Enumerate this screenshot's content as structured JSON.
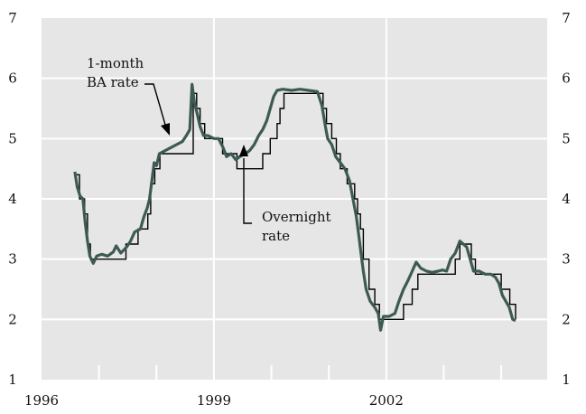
{
  "colors": {
    "plot_background": "#e6e6e6",
    "grid": "#ffffff",
    "ba_rate": "#3d5a54",
    "overnight_rate": "#000000"
  },
  "chart_data": {
    "type": "line",
    "title": "",
    "xlabel": "",
    "ylabel": "",
    "xlim": [
      1996.0,
      2004.8
    ],
    "ylim": [
      1,
      7
    ],
    "x_ticks": [
      1996,
      1999,
      2002
    ],
    "x_tick_labels": [
      "1996",
      "1999",
      "2002"
    ],
    "x_minor_ticks": [
      1997,
      1998,
      2000,
      2001,
      2003,
      2004
    ],
    "y_ticks": [
      1,
      2,
      3,
      4,
      5,
      6,
      7
    ],
    "y_tick_labels_left": [
      "1",
      "2",
      "3",
      "4",
      "5",
      "6",
      "7"
    ],
    "y_tick_labels_right": [
      "1",
      "2",
      "3",
      "4",
      "5",
      "6",
      "7"
    ],
    "grid": true,
    "annotations": [
      {
        "lines": [
          "1-month",
          "BA rate"
        ],
        "target_series": "ba_rate"
      },
      {
        "lines": [
          "Overnight",
          "rate"
        ],
        "target_series": "overnight_rate"
      }
    ],
    "series": [
      {
        "id": "ba_rate",
        "style": "line",
        "points": [
          [
            1996.58,
            4.45
          ],
          [
            1996.62,
            4.2
          ],
          [
            1996.67,
            4.05
          ],
          [
            1996.72,
            4.0
          ],
          [
            1996.76,
            3.6
          ],
          [
            1996.8,
            3.3
          ],
          [
            1996.84,
            3.05
          ],
          [
            1996.9,
            2.93
          ],
          [
            1996.96,
            3.05
          ],
          [
            1997.05,
            3.08
          ],
          [
            1997.15,
            3.05
          ],
          [
            1997.25,
            3.12
          ],
          [
            1997.3,
            3.22
          ],
          [
            1997.38,
            3.1
          ],
          [
            1997.48,
            3.2
          ],
          [
            1997.55,
            3.3
          ],
          [
            1997.62,
            3.45
          ],
          [
            1997.72,
            3.5
          ],
          [
            1997.78,
            3.7
          ],
          [
            1997.84,
            3.85
          ],
          [
            1997.88,
            4.0
          ],
          [
            1997.92,
            4.3
          ],
          [
            1997.96,
            4.6
          ],
          [
            1998.0,
            4.55
          ],
          [
            1998.05,
            4.75
          ],
          [
            1998.15,
            4.8
          ],
          [
            1998.25,
            4.85
          ],
          [
            1998.35,
            4.9
          ],
          [
            1998.45,
            4.95
          ],
          [
            1998.52,
            5.05
          ],
          [
            1998.58,
            5.15
          ],
          [
            1998.62,
            5.9
          ],
          [
            1998.66,
            5.6
          ],
          [
            1998.7,
            5.45
          ],
          [
            1998.76,
            5.2
          ],
          [
            1998.82,
            5.05
          ],
          [
            1998.9,
            5.05
          ],
          [
            1999.0,
            5.0
          ],
          [
            1999.08,
            5.0
          ],
          [
            1999.16,
            4.85
          ],
          [
            1999.22,
            4.7
          ],
          [
            1999.3,
            4.75
          ],
          [
            1999.38,
            4.65
          ],
          [
            1999.45,
            4.7
          ],
          [
            1999.55,
            4.75
          ],
          [
            1999.62,
            4.8
          ],
          [
            1999.7,
            4.9
          ],
          [
            1999.78,
            5.05
          ],
          [
            1999.85,
            5.15
          ],
          [
            1999.92,
            5.3
          ],
          [
            1999.98,
            5.5
          ],
          [
            2000.04,
            5.7
          ],
          [
            2000.1,
            5.8
          ],
          [
            2000.2,
            5.82
          ],
          [
            2000.35,
            5.8
          ],
          [
            2000.5,
            5.82
          ],
          [
            2000.65,
            5.8
          ],
          [
            2000.8,
            5.78
          ],
          [
            2000.88,
            5.55
          ],
          [
            2000.94,
            5.2
          ],
          [
            2000.98,
            5.0
          ],
          [
            2001.05,
            4.9
          ],
          [
            2001.12,
            4.7
          ],
          [
            2001.2,
            4.6
          ],
          [
            2001.28,
            4.5
          ],
          [
            2001.36,
            4.3
          ],
          [
            2001.42,
            4.0
          ],
          [
            2001.48,
            3.7
          ],
          [
            2001.52,
            3.4
          ],
          [
            2001.56,
            3.1
          ],
          [
            2001.6,
            2.8
          ],
          [
            2001.65,
            2.5
          ],
          [
            2001.72,
            2.3
          ],
          [
            2001.8,
            2.2
          ],
          [
            2001.86,
            2.1
          ],
          [
            2001.9,
            1.82
          ],
          [
            2001.95,
            2.05
          ],
          [
            2002.05,
            2.05
          ],
          [
            2002.15,
            2.1
          ],
          [
            2002.22,
            2.3
          ],
          [
            2002.3,
            2.5
          ],
          [
            2002.38,
            2.65
          ],
          [
            2002.45,
            2.8
          ],
          [
            2002.52,
            2.95
          ],
          [
            2002.6,
            2.85
          ],
          [
            2002.7,
            2.8
          ],
          [
            2002.8,
            2.78
          ],
          [
            2002.9,
            2.8
          ],
          [
            2002.98,
            2.82
          ],
          [
            2003.05,
            2.8
          ],
          [
            2003.12,
            3.0
          ],
          [
            2003.2,
            3.1
          ],
          [
            2003.28,
            3.3
          ],
          [
            2003.34,
            3.25
          ],
          [
            2003.4,
            3.2
          ],
          [
            2003.46,
            3.0
          ],
          [
            2003.52,
            2.8
          ],
          [
            2003.62,
            2.8
          ],
          [
            2003.72,
            2.75
          ],
          [
            2003.82,
            2.75
          ],
          [
            2003.9,
            2.7
          ],
          [
            2003.96,
            2.6
          ],
          [
            2004.02,
            2.4
          ],
          [
            2004.08,
            2.3
          ],
          [
            2004.14,
            2.2
          ],
          [
            2004.2,
            2.0
          ],
          [
            2004.25,
            1.98
          ]
        ]
      },
      {
        "id": "overnight_rate",
        "style": "step",
        "points": [
          [
            1996.58,
            4.4
          ],
          [
            1996.66,
            4.0
          ],
          [
            1996.75,
            3.75
          ],
          [
            1996.8,
            3.25
          ],
          [
            1996.85,
            3.0
          ],
          [
            1997.4,
            3.0
          ],
          [
            1997.47,
            3.25
          ],
          [
            1997.68,
            3.5
          ],
          [
            1997.85,
            3.75
          ],
          [
            1997.9,
            4.25
          ],
          [
            1997.97,
            4.5
          ],
          [
            1998.06,
            4.75
          ],
          [
            1998.62,
            4.75
          ],
          [
            1998.64,
            5.75
          ],
          [
            1998.7,
            5.5
          ],
          [
            1998.76,
            5.25
          ],
          [
            1998.84,
            5.0
          ],
          [
            1999.1,
            5.0
          ],
          [
            1999.15,
            4.75
          ],
          [
            1999.4,
            4.5
          ],
          [
            1999.78,
            4.5
          ],
          [
            1999.85,
            4.75
          ],
          [
            1999.98,
            5.0
          ],
          [
            2000.1,
            5.25
          ],
          [
            2000.15,
            5.5
          ],
          [
            2000.22,
            5.75
          ],
          [
            2000.85,
            5.75
          ],
          [
            2000.9,
            5.5
          ],
          [
            2000.96,
            5.25
          ],
          [
            2001.05,
            5.0
          ],
          [
            2001.13,
            4.75
          ],
          [
            2001.2,
            4.5
          ],
          [
            2001.32,
            4.25
          ],
          [
            2001.45,
            4.0
          ],
          [
            2001.5,
            3.75
          ],
          [
            2001.55,
            3.5
          ],
          [
            2001.6,
            3.0
          ],
          [
            2001.7,
            2.5
          ],
          [
            2001.8,
            2.25
          ],
          [
            2001.88,
            2.0
          ],
          [
            2002.23,
            2.0
          ],
          [
            2002.3,
            2.25
          ],
          [
            2002.45,
            2.5
          ],
          [
            2002.55,
            2.75
          ],
          [
            2003.15,
            2.75
          ],
          [
            2003.2,
            3.0
          ],
          [
            2003.28,
            3.25
          ],
          [
            2003.48,
            3.0
          ],
          [
            2003.55,
            2.75
          ],
          [
            2003.95,
            2.75
          ],
          [
            2004.0,
            2.5
          ],
          [
            2004.15,
            2.25
          ],
          [
            2004.25,
            2.0
          ]
        ]
      }
    ]
  }
}
